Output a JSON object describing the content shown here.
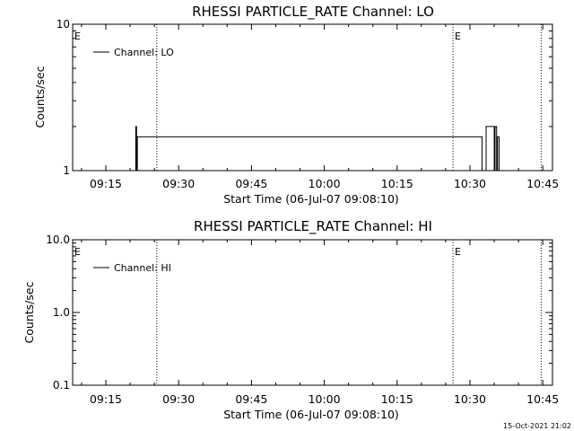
{
  "charts": [
    {
      "title": "RHESSI PARTICLE_RATE Channel: LO",
      "ylabel": "Counts/sec",
      "xlabel": "Start Time (06-Jul-07 09:08:10)",
      "legend_label": "Channel: LO",
      "y_ticks": [
        "10",
        "1"
      ]
    },
    {
      "title": "RHESSI PARTICLE_RATE Channel: HI",
      "ylabel": "Counts/sec",
      "xlabel": "Start Time (06-Jul-07 09:08:10)",
      "legend_label": "Channel: HI",
      "y_ticks": [
        "10.0",
        "1.0",
        "0.1"
      ]
    }
  ],
  "x_tick_labels": [
    "09:15",
    "09:30",
    "09:45",
    "10:00",
    "10:15",
    "10:30",
    "10:45"
  ],
  "event_markers": [
    {
      "label": "E",
      "time": "09:08:10"
    },
    {
      "label": "E",
      "time": "10:26:30"
    }
  ],
  "footer_stamp": "15-Oct-2021 21:02",
  "chart_data": [
    {
      "type": "line",
      "title": "RHESSI PARTICLE_RATE Channel: LO",
      "xlabel": "Start Time (06-Jul-07 09:08:10)",
      "ylabel": "Counts/sec",
      "y_scale": "log",
      "xlim": [
        "09:08:10",
        "10:47:00"
      ],
      "ylim": [
        1,
        10
      ],
      "x_ticks": [
        "09:15",
        "09:30",
        "09:45",
        "10:00",
        "10:15",
        "10:30",
        "10:45"
      ],
      "y_ticks": [
        1,
        10
      ],
      "vertical_lines": [
        "09:25:30",
        "10:26:30",
        "10:44:40"
      ],
      "legend_position": "top-left",
      "series": [
        {
          "name": "Channel: LO",
          "x": [
            "09:20:50",
            "09:21:10",
            "09:21:20",
            "09:21:30",
            "10:32:30",
            "10:33:20",
            "10:34:20",
            "10:35:00",
            "10:35:10",
            "10:35:30",
            "10:35:40",
            "10:36:00"
          ],
          "y": [
            1,
            2,
            1,
            1.7,
            1,
            2,
            2,
            1,
            2,
            1,
            1.7,
            1
          ]
        }
      ]
    },
    {
      "type": "line",
      "title": "RHESSI PARTICLE_RATE Channel: HI",
      "xlabel": "Start Time (06-Jul-07 09:08:10)",
      "ylabel": "Counts/sec",
      "y_scale": "log",
      "xlim": [
        "09:08:10",
        "10:47:00"
      ],
      "ylim": [
        0.1,
        10
      ],
      "x_ticks": [
        "09:15",
        "09:30",
        "09:45",
        "10:00",
        "10:15",
        "10:30",
        "10:45"
      ],
      "y_ticks": [
        0.1,
        1,
        10
      ],
      "vertical_lines": [
        "09:25:30",
        "10:26:30",
        "10:44:40"
      ],
      "legend_position": "top-left",
      "series": [
        {
          "name": "Channel: HI",
          "x": [],
          "y": []
        }
      ]
    }
  ]
}
